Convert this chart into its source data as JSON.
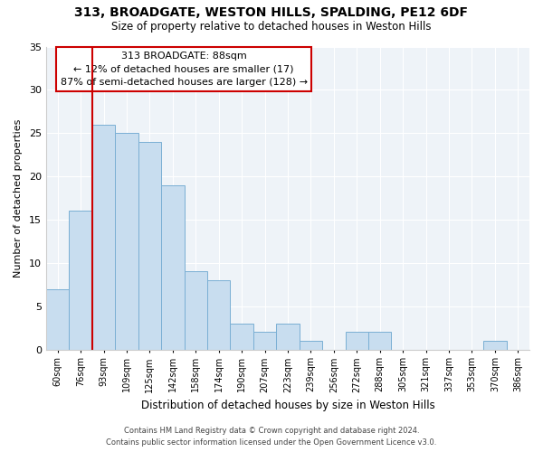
{
  "title": "313, BROADGATE, WESTON HILLS, SPALDING, PE12 6DF",
  "subtitle": "Size of property relative to detached houses in Weston Hills",
  "xlabel": "Distribution of detached houses by size in Weston Hills",
  "ylabel": "Number of detached properties",
  "bar_labels": [
    "60sqm",
    "76sqm",
    "93sqm",
    "109sqm",
    "125sqm",
    "142sqm",
    "158sqm",
    "174sqm",
    "190sqm",
    "207sqm",
    "223sqm",
    "239sqm",
    "256sqm",
    "272sqm",
    "288sqm",
    "305sqm",
    "321sqm",
    "337sqm",
    "353sqm",
    "370sqm",
    "386sqm"
  ],
  "bar_values": [
    7,
    16,
    26,
    25,
    24,
    19,
    9,
    8,
    3,
    2,
    3,
    1,
    0,
    2,
    2,
    0,
    0,
    0,
    0,
    1,
    0
  ],
  "bar_color": "#c8ddef",
  "bar_edge_color": "#7aafd4",
  "ylim": [
    0,
    35
  ],
  "yticks": [
    0,
    5,
    10,
    15,
    20,
    25,
    30,
    35
  ],
  "vline_color": "#cc0000",
  "annotation_title": "313 BROADGATE: 88sqm",
  "annotation_line1": "← 12% of detached houses are smaller (17)",
  "annotation_line2": "87% of semi-detached houses are larger (128) →",
  "annotation_box_color": "#ffffff",
  "annotation_box_edge": "#cc0000",
  "footer_line1": "Contains HM Land Registry data © Crown copyright and database right 2024.",
  "footer_line2": "Contains public sector information licensed under the Open Government Licence v3.0.",
  "background_color": "#ffffff",
  "plot_bg_color": "#eef3f8",
  "grid_color": "#ffffff"
}
